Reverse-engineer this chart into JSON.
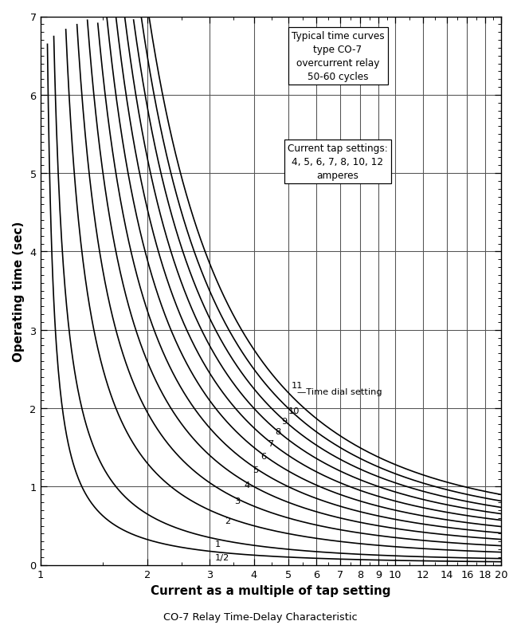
{
  "title": "CO-7 Relay Time-Delay Characteristic",
  "xlabel": "Current as a multiple of tap setting",
  "ylabel": "Operating time (sec)",
  "legend_text1": "Typical time curves\ntype CO-7\novercurrent relay\n50-60 cycles",
  "legend_text2": "Current tap settings:\n4, 5, 6, 7, 8, 10, 12\namperes",
  "xlim": [
    1,
    20
  ],
  "ylim": [
    0,
    7
  ],
  "dial_settings": [
    0.5,
    1,
    2,
    3,
    4,
    5,
    6,
    7,
    8,
    9,
    10,
    11
  ],
  "dial_labels": [
    "1/2",
    "1",
    "2",
    "3",
    "4",
    "5",
    "6",
    "7",
    "8",
    "9",
    "10",
    "11"
  ],
  "x_ticks": [
    1,
    2,
    3,
    4,
    5,
    6,
    7,
    8,
    9,
    10,
    12,
    14,
    16,
    18,
    20
  ],
  "x_tick_labels": [
    "1",
    "2",
    "3",
    "4",
    "5",
    "6",
    "7",
    "8",
    "9",
    "10",
    "12",
    "14",
    "16",
    "18",
    "20"
  ],
  "y_ticks": [
    0,
    1,
    2,
    3,
    4,
    5,
    6,
    7
  ],
  "curve_A": 0.0274,
  "curve_B": 0.5,
  "curve_p": 0.02,
  "background_color": "#ffffff",
  "curve_color": "#000000"
}
